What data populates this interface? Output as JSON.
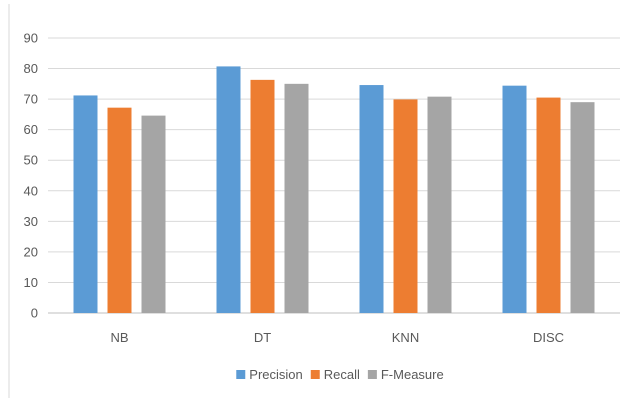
{
  "chart_data": {
    "type": "bar",
    "title": "",
    "xlabel": "",
    "ylabel": "",
    "categories": [
      "NB",
      "DT",
      "KNN",
      "DISC"
    ],
    "series": [
      {
        "name": "Precision",
        "color": "#5b9bd5",
        "values": [
          71.2,
          80.7,
          74.6,
          74.4
        ]
      },
      {
        "name": "Recall",
        "color": "#ed7d31",
        "values": [
          67.2,
          76.3,
          69.9,
          70.5
        ]
      },
      {
        "name": "F-Measure",
        "color": "#a5a5a5",
        "values": [
          64.6,
          75.0,
          70.8,
          69.0
        ]
      }
    ],
    "ylim": [
      0,
      90
    ],
    "yticks": [
      0,
      10,
      20,
      30,
      40,
      50,
      60,
      70,
      80,
      90
    ],
    "grid": true,
    "legend_position": "bottom"
  }
}
